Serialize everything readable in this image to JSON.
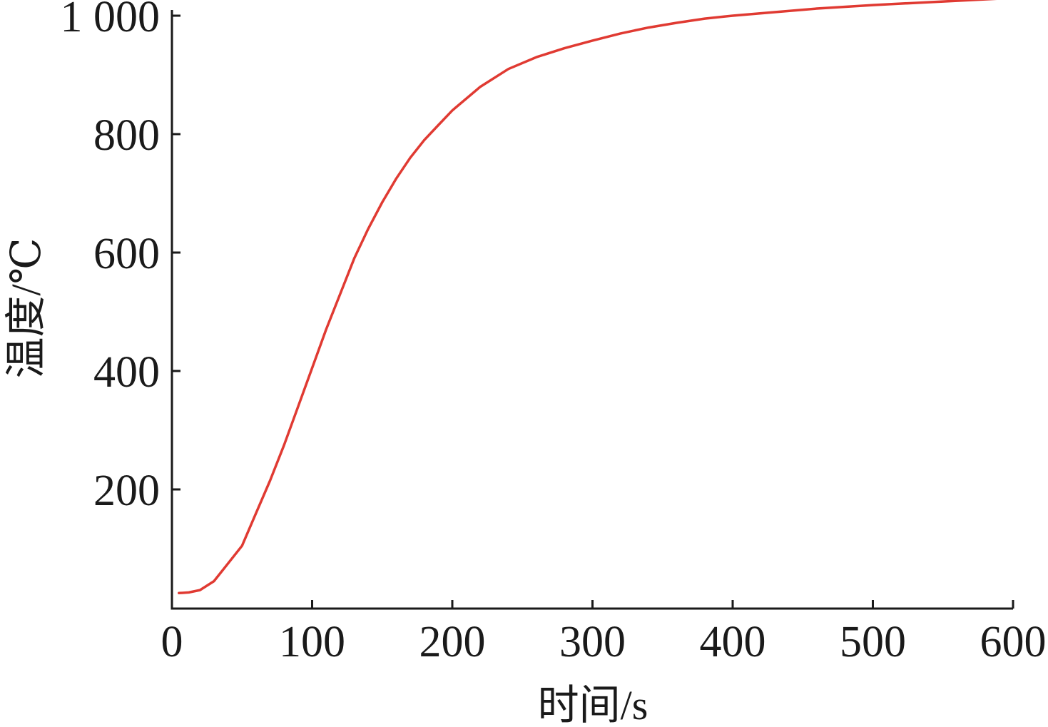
{
  "chart_data": {
    "type": "line",
    "xlabel": "时间/s",
    "ylabel": "温度/℃",
    "xlim": [
      0,
      600
    ],
    "ylim": [
      0,
      1000
    ],
    "x_ticks": [
      0,
      100,
      200,
      300,
      400,
      500,
      600
    ],
    "y_ticks": [
      200,
      400,
      600,
      800,
      1000
    ],
    "y_tick_labels": [
      "200",
      "400",
      "600",
      "800",
      "1 000"
    ],
    "grid": false,
    "series": [
      {
        "color": "#e03a32",
        "x": [
          5,
          12,
          20,
          30,
          40,
          50,
          60,
          70,
          80,
          90,
          100,
          110,
          120,
          130,
          140,
          150,
          160,
          170,
          180,
          190,
          200,
          220,
          240,
          260,
          280,
          300,
          320,
          340,
          360,
          380,
          400,
          430,
          460,
          500,
          550,
          600
        ],
        "y": [
          25,
          26,
          30,
          45,
          75,
          105,
          160,
          215,
          275,
          340,
          405,
          470,
          530,
          590,
          640,
          685,
          725,
          760,
          790,
          815,
          840,
          880,
          910,
          930,
          945,
          958,
          970,
          980,
          988,
          995,
          1000,
          1006,
          1012,
          1018,
          1024,
          1030
        ]
      }
    ]
  }
}
